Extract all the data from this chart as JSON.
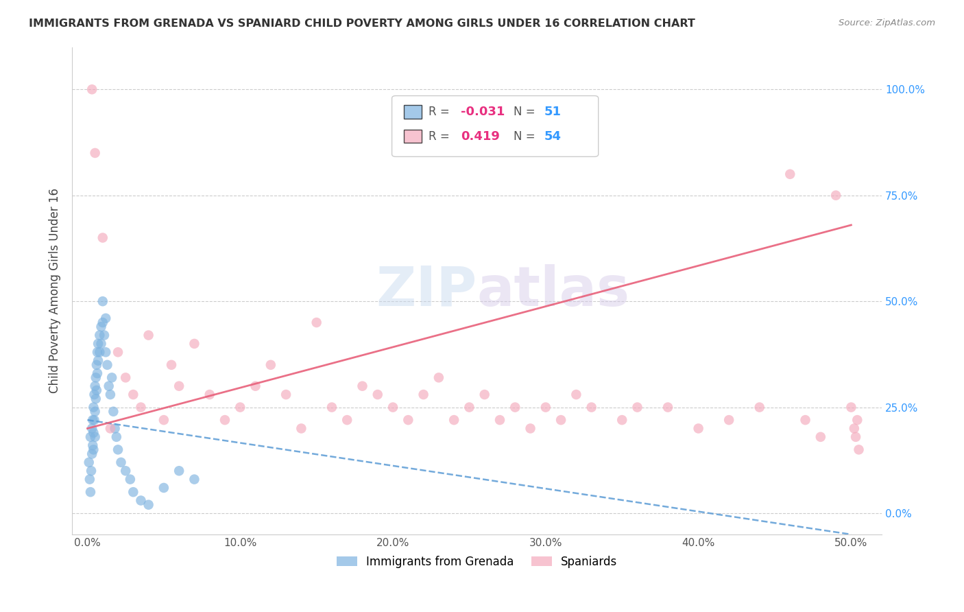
{
  "title": "IMMIGRANTS FROM GRENADA VS SPANIARD CHILD POVERTY AMONG GIRLS UNDER 16 CORRELATION CHART",
  "source": "Source: ZipAtlas.com",
  "ylabel": "Child Poverty Among Girls Under 16",
  "xlim": [
    -1.0,
    52.0
  ],
  "ylim": [
    -5.0,
    110.0
  ],
  "yticks": [
    0,
    25,
    50,
    75,
    100
  ],
  "ytick_labels": [
    "0.0%",
    "25.0%",
    "50.0%",
    "75.0%",
    "100.0%"
  ],
  "xticks": [
    0,
    10,
    20,
    30,
    40,
    50
  ],
  "xtick_labels": [
    "0.0%",
    "10.0%",
    "20.0%",
    "30.0%",
    "40.0%",
    "50.0%"
  ],
  "grenada_R": -0.031,
  "grenada_N": 51,
  "spaniard_R": 0.419,
  "spaniard_N": 54,
  "grenada_color": "#7EB3E0",
  "spaniard_color": "#F4AABC",
  "grenada_line_color": "#5B9BD5",
  "spaniard_line_color": "#E8607A",
  "background_color": "#ffffff",
  "grenada_x": [
    0.1,
    0.15,
    0.2,
    0.2,
    0.25,
    0.3,
    0.3,
    0.35,
    0.35,
    0.4,
    0.4,
    0.4,
    0.45,
    0.45,
    0.5,
    0.5,
    0.5,
    0.55,
    0.55,
    0.6,
    0.6,
    0.65,
    0.65,
    0.7,
    0.7,
    0.8,
    0.8,
    0.9,
    0.9,
    1.0,
    1.0,
    1.1,
    1.2,
    1.2,
    1.3,
    1.4,
    1.5,
    1.6,
    1.7,
    1.8,
    1.9,
    2.0,
    2.2,
    2.5,
    2.8,
    3.0,
    3.5,
    4.0,
    5.0,
    6.0,
    7.0
  ],
  "grenada_y": [
    12,
    8,
    5,
    18,
    10,
    14,
    20,
    16,
    22,
    19,
    25,
    15,
    28,
    22,
    30,
    24,
    18,
    32,
    27,
    35,
    29,
    38,
    33,
    40,
    36,
    42,
    38,
    44,
    40,
    45,
    50,
    42,
    38,
    46,
    35,
    30,
    28,
    32,
    24,
    20,
    18,
    15,
    12,
    10,
    8,
    5,
    3,
    2,
    6,
    10,
    8
  ],
  "spaniard_x": [
    0.3,
    0.5,
    1.0,
    1.5,
    2.0,
    2.5,
    3.0,
    3.5,
    4.0,
    5.0,
    5.5,
    6.0,
    7.0,
    8.0,
    9.0,
    10.0,
    11.0,
    12.0,
    13.0,
    14.0,
    15.0,
    16.0,
    17.0,
    18.0,
    19.0,
    20.0,
    21.0,
    22.0,
    23.0,
    24.0,
    25.0,
    26.0,
    27.0,
    28.0,
    29.0,
    30.0,
    31.0,
    32.0,
    33.0,
    35.0,
    36.0,
    38.0,
    40.0,
    42.0,
    44.0,
    46.0,
    47.0,
    48.0,
    49.0,
    50.0,
    50.2,
    50.3,
    50.4,
    50.5
  ],
  "spaniard_y": [
    100.0,
    85.0,
    65.0,
    20.0,
    38.0,
    32.0,
    28.0,
    25.0,
    42.0,
    22.0,
    35.0,
    30.0,
    40.0,
    28.0,
    22.0,
    25.0,
    30.0,
    35.0,
    28.0,
    20.0,
    45.0,
    25.0,
    22.0,
    30.0,
    28.0,
    25.0,
    22.0,
    28.0,
    32.0,
    22.0,
    25.0,
    28.0,
    22.0,
    25.0,
    20.0,
    25.0,
    22.0,
    28.0,
    25.0,
    22.0,
    25.0,
    25.0,
    20.0,
    22.0,
    25.0,
    80.0,
    22.0,
    18.0,
    75.0,
    25.0,
    20.0,
    18.0,
    22.0,
    15.0
  ]
}
